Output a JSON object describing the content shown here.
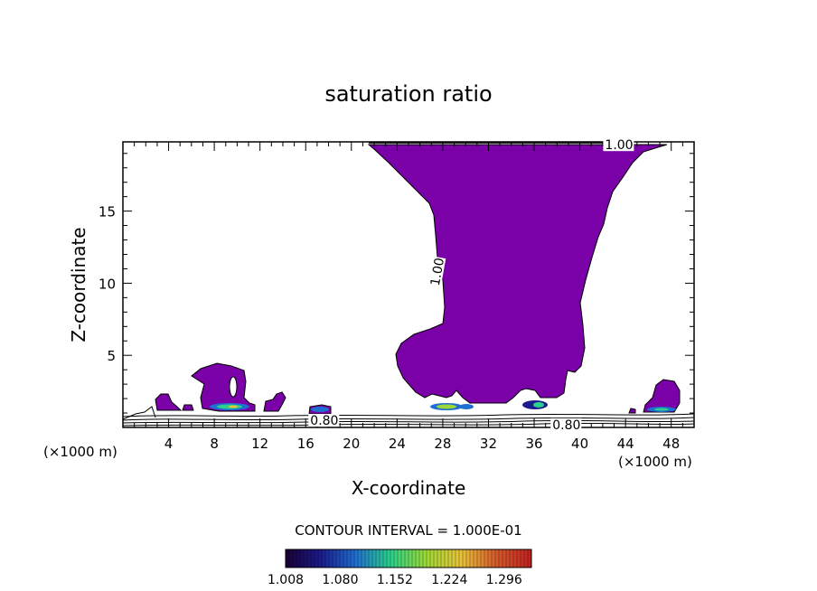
{
  "chart_data": {
    "type": "contour",
    "title": "saturation ratio",
    "xlabel": "X-coordinate",
    "ylabel": "Z-coordinate",
    "x_units": "(×1000 m)",
    "x_units_right": "(×1000 m)",
    "xlim": [
      0,
      50
    ],
    "ylim": [
      0,
      19.8
    ],
    "x_ticks": [
      4,
      8,
      12,
      16,
      20,
      24,
      28,
      32,
      36,
      40,
      44,
      48
    ],
    "y_ticks": [
      5,
      10,
      15
    ],
    "contour_interval_text": "CONTOUR INTERVAL = 1.000E-01",
    "contour_labels": [
      {
        "text": "1.00",
        "x": 42.2,
        "y": 19.6
      },
      {
        "text": "1.00",
        "x": 27.5,
        "y": 10.8
      },
      {
        "text": "0.80",
        "x": 16.4,
        "y": 0.5
      },
      {
        "text": "0.80",
        "x": 37.6,
        "y": 0.2
      }
    ],
    "filled_region_color": "#7a00a8",
    "colorbar": {
      "tick_labels": [
        "1.008",
        "1.080",
        "1.152",
        "1.224",
        "1.296"
      ],
      "min": 1.008,
      "max": 1.332,
      "colors": [
        "#1a0033",
        "#1b1b8c",
        "#1f6fd0",
        "#2bd18a",
        "#9cd936",
        "#e8c23a",
        "#d45a2a",
        "#c02020"
      ]
    }
  }
}
